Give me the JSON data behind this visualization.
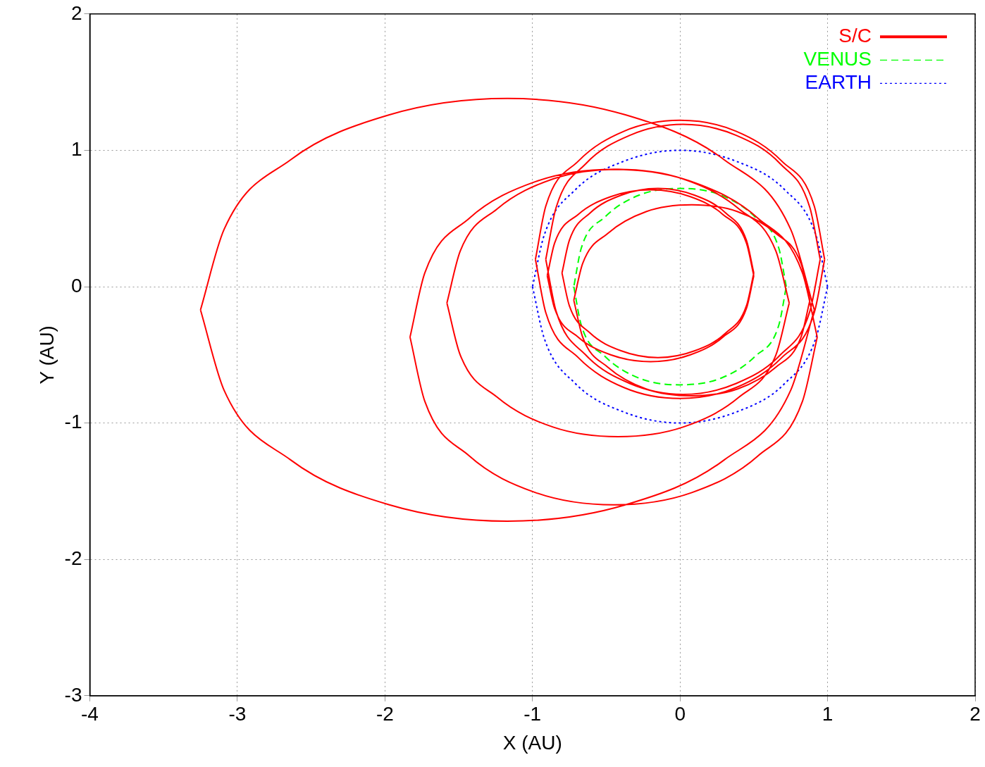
{
  "chart_data": {
    "type": "line",
    "xlabel": "X (AU)",
    "ylabel": "Y (AU)",
    "xlim": [
      -4,
      2
    ],
    "xticks": [
      -4,
      -3,
      -2,
      -1,
      0,
      1,
      2
    ],
    "ylim": [
      -3,
      2
    ],
    "yticks": [
      -3,
      -2,
      -1,
      0,
      1,
      2
    ],
    "grid": true,
    "legend": "top right",
    "marker": "none",
    "series": [
      {
        "name": "S/C",
        "color": "#ff0000",
        "line_style": "solid",
        "x": [
          0.91,
          0.75,
          0.3,
          -0.37,
          -1.17,
          -1.97,
          -2.64,
          -3.09,
          -3.25,
          null,
          -3.25,
          -3.09,
          -2.64,
          -1.97,
          -1.17,
          -0.37,
          0.3,
          0.75,
          0.91,
          null,
          0.93,
          0.83,
          0.53,
          0.08,
          -0.45,
          -0.98,
          -1.43,
          -1.73,
          -1.83,
          null,
          -1.83,
          -1.73,
          -1.43,
          -0.98,
          -0.45,
          0.08,
          0.53,
          0.83,
          0.93,
          null,
          0.74,
          0.65,
          0.4,
          0.02,
          -0.42,
          -0.86,
          -1.24,
          -1.49,
          -1.58,
          null,
          -1.58,
          -1.49,
          -1.24,
          -0.86,
          -0.42,
          0.02,
          0.4,
          0.65,
          0.74,
          null,
          0.98,
          0.91,
          0.69,
          0.38,
          0,
          -0.38,
          -0.69,
          -0.91,
          -0.98,
          null,
          -0.98,
          -0.91,
          -0.69,
          -0.38,
          0,
          0.38,
          0.69,
          0.91,
          0.98,
          null,
          0.95,
          0.88,
          0.68,
          0.38,
          0.02,
          -0.34,
          -0.64,
          -0.84,
          -0.91,
          null,
          -0.91,
          -0.84,
          -0.64,
          -0.34,
          0.02,
          0.38,
          0.68,
          0.88,
          0.95,
          null,
          0.5,
          0.45,
          0.29,
          0.07,
          -0.2,
          -0.47,
          -0.69,
          -0.85,
          -0.9,
          null,
          -0.9,
          -0.85,
          -0.69,
          -0.47,
          -0.2,
          0.07,
          0.29,
          0.45,
          0.5,
          null,
          0.5,
          0.45,
          0.31,
          0.1,
          -0.15,
          -0.4,
          -0.61,
          -0.75,
          -0.8,
          null,
          -0.8,
          -0.75,
          -0.61,
          -0.4,
          -0.15,
          0.1,
          0.31,
          0.45,
          0.5,
          null,
          0.88,
          0.82,
          0.65,
          0.39,
          0.08,
          -0.23,
          -0.49,
          -0.66,
          -0.72,
          null,
          -0.72,
          -0.66,
          -0.49,
          -0.23,
          0.08,
          0.39,
          0.65,
          0.82,
          0.88
        ],
        "values": [
          -0.17,
          0.42,
          0.93,
          1.26,
          1.38,
          1.26,
          0.93,
          0.42,
          -0.17,
          null,
          -0.17,
          -0.76,
          -1.27,
          -1.6,
          -1.72,
          -1.6,
          -1.27,
          -0.76,
          -0.17,
          null,
          -0.37,
          0.1,
          0.5,
          0.77,
          0.86,
          0.77,
          0.5,
          0.1,
          -0.37,
          null,
          -0.37,
          -0.84,
          -1.24,
          -1.51,
          -1.6,
          -1.51,
          -1.24,
          -0.84,
          -0.37,
          null,
          -0.12,
          0.26,
          0.57,
          0.79,
          0.86,
          0.79,
          0.57,
          0.26,
          -0.12,
          null,
          -0.12,
          -0.5,
          -0.81,
          -1.03,
          -1.1,
          -1.03,
          -0.81,
          -0.5,
          -0.12,
          null,
          0.2,
          0.59,
          0.92,
          1.14,
          1.22,
          1.14,
          0.92,
          0.59,
          0.2,
          null,
          0.2,
          -0.19,
          -0.52,
          -0.74,
          -0.82,
          -0.74,
          -0.52,
          -0.19,
          0.2,
          null,
          0.2,
          0.58,
          0.9,
          1.11,
          1.19,
          1.11,
          0.9,
          0.58,
          0.2,
          null,
          0.2,
          -0.18,
          -0.5,
          -0.71,
          -0.79,
          -0.71,
          -0.5,
          -0.18,
          0.2,
          null,
          0.08,
          0.32,
          0.53,
          0.66,
          0.71,
          0.66,
          0.53,
          0.32,
          0.08,
          null,
          0.08,
          -0.16,
          -0.37,
          -0.5,
          -0.55,
          -0.5,
          -0.37,
          -0.16,
          0.08,
          null,
          0.1,
          0.34,
          0.54,
          0.67,
          0.72,
          0.67,
          0.54,
          0.34,
          0.1,
          null,
          0.1,
          -0.14,
          -0.34,
          -0.47,
          -0.52,
          -0.47,
          -0.34,
          -0.14,
          0.1,
          null,
          -0.1,
          0.17,
          0.39,
          0.55,
          0.6,
          0.55,
          0.39,
          0.17,
          -0.1,
          null,
          -0.1,
          -0.37,
          -0.59,
          -0.75,
          -0.8,
          -0.75,
          -0.59,
          -0.37,
          -0.1
        ]
      },
      {
        "name": "VENUS",
        "color": "#00ff00",
        "line_style": "dashed",
        "x": [
          0.72,
          0.67,
          0.51,
          0.28,
          0,
          -0.28,
          -0.51,
          -0.67,
          -0.72,
          null,
          -0.72,
          -0.67,
          -0.51,
          -0.28,
          0,
          0.28,
          0.51,
          0.67,
          0.72
        ],
        "values": [
          0,
          0.28,
          0.51,
          0.67,
          0.72,
          0.67,
          0.51,
          0.28,
          0,
          null,
          0,
          -0.28,
          -0.51,
          -0.67,
          -0.72,
          -0.67,
          -0.51,
          -0.28,
          0
        ]
      },
      {
        "name": "EARTH",
        "color": "#0000ff",
        "line_style": "dotted",
        "x": [
          1,
          0.92,
          0.71,
          0.38,
          0,
          -0.38,
          -0.71,
          -0.92,
          -1,
          null,
          -1,
          -0.92,
          -0.71,
          -0.38,
          0,
          0.38,
          0.71,
          0.92,
          1
        ],
        "values": [
          0,
          0.38,
          0.71,
          0.92,
          1,
          0.92,
          0.71,
          0.38,
          0,
          null,
          0,
          -0.38,
          -0.71,
          -0.92,
          -1,
          -0.92,
          -0.71,
          -0.38,
          0
        ]
      }
    ]
  }
}
